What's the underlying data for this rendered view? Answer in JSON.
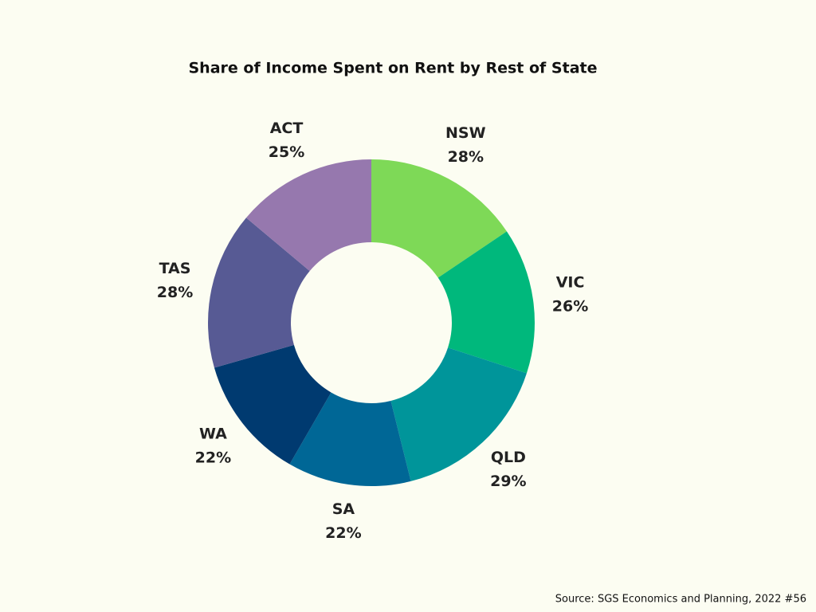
{
  "chart_data": {
    "type": "donut",
    "title": "Share of Income Spent on Rent by Rest of  State",
    "categories": [
      "NSW",
      "VIC",
      "QLD",
      "SA",
      "WA",
      "TAS",
      "ACT"
    ],
    "values": [
      28,
      26,
      29,
      22,
      22,
      28,
      25
    ],
    "value_labels": [
      "28%",
      "26%",
      "29%",
      "22%",
      "22%",
      "28%",
      "25%"
    ],
    "colors": [
      "#7ed957",
      "#00b87c",
      "#00959a",
      "#006796",
      "#003a70",
      "#575a94",
      "#9678ae"
    ],
    "source": "Source: SGS Economics and Planning, 2022 #56"
  }
}
